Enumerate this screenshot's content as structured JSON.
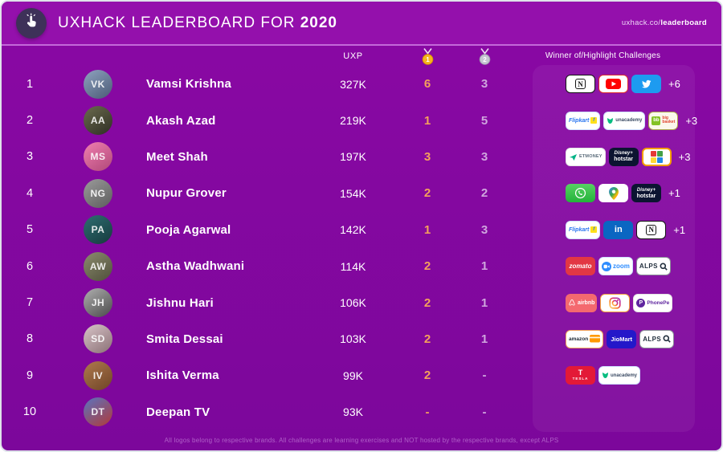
{
  "header": {
    "title_prefix": "UXHACK LEADERBOARD FOR ",
    "title_year": "2020",
    "url_prefix": "uxhack.co/",
    "url_bold": "leaderboard"
  },
  "columns": {
    "uxp_label": "UXP",
    "gold_medal_number": "1",
    "silver_medal_number": "2",
    "challenges_label": "Winner of/Highlight Challenges"
  },
  "colors": {
    "gold_count": "#F4A05C",
    "silver_count": "#CFA6DE",
    "gold_medal": "#F6B51E",
    "silver_medal": "#C6C6D2",
    "header_bg": "#9410AC",
    "body_bg": "#8A08A4",
    "twitter_blue": "#1D9BF0",
    "linkedin_blue": "#0A66C2",
    "whatsapp_green": "#23B33A",
    "zomato_red": "#E23744",
    "tesla_red": "#E31937"
  },
  "brands": {
    "notion": {
      "label": "N"
    },
    "youtube": {
      "label": ""
    },
    "twitter": {
      "label": ""
    },
    "flipkart": {
      "label": "Flipkart"
    },
    "unacademy": {
      "label": "unacademy"
    },
    "bigbasket": {
      "label_icon": "bb",
      "label": "big basket"
    },
    "etmoney": {
      "label": "ETMONEY"
    },
    "hotstar": {
      "label_top": "Disney+",
      "label": "hotstar"
    },
    "ludoking": {
      "label": ""
    },
    "whatsapp": {
      "label": ""
    },
    "googlemaps": {
      "label": ""
    },
    "linkedin": {
      "label": "in"
    },
    "zomato": {
      "label": "zomato"
    },
    "zoom": {
      "label": "zoom"
    },
    "alps": {
      "label": "ALPS"
    },
    "airbnb": {
      "label": "airbnb"
    },
    "instagram": {
      "label": ""
    },
    "phonepe": {
      "label": "PhonePe",
      "label_icon": "P"
    },
    "amazonpay": {
      "label": "amazon"
    },
    "jiomart": {
      "label": "JioMart"
    },
    "tesla": {
      "label": "TESLA",
      "label_icon": "T"
    }
  },
  "rows": [
    {
      "rank": "1",
      "name": "Vamsi Krishna",
      "uxp": "327K",
      "gold": "6",
      "silver": "3",
      "brands": [
        "notion",
        "youtube",
        "twitter"
      ],
      "extra": "+6"
    },
    {
      "rank": "2",
      "name": "Akash Azad",
      "uxp": "219K",
      "gold": "1",
      "silver": "5",
      "brands": [
        "flipkart",
        "unacademy",
        "bigbasket"
      ],
      "extra": "+3"
    },
    {
      "rank": "3",
      "name": "Meet Shah",
      "uxp": "197K",
      "gold": "3",
      "silver": "3",
      "brands": [
        "etmoney",
        "hotstar",
        "ludoking"
      ],
      "extra": "+3"
    },
    {
      "rank": "4",
      "name": "Nupur Grover",
      "uxp": "154K",
      "gold": "2",
      "silver": "2",
      "brands": [
        "whatsapp",
        "googlemaps",
        "hotstar"
      ],
      "extra": "+1"
    },
    {
      "rank": "5",
      "name": "Pooja Agarwal",
      "uxp": "142K",
      "gold": "1",
      "silver": "3",
      "brands": [
        "flipkart",
        "linkedin",
        "notion"
      ],
      "extra": "+1"
    },
    {
      "rank": "6",
      "name": "Astha Wadhwani",
      "uxp": "114K",
      "gold": "2",
      "silver": "1",
      "brands": [
        "zomato",
        "zoom",
        "alps"
      ],
      "extra": ""
    },
    {
      "rank": "7",
      "name": "Jishnu Hari",
      "uxp": "106K",
      "gold": "2",
      "silver": "1",
      "brands": [
        "airbnb",
        "instagram",
        "phonepe"
      ],
      "extra": ""
    },
    {
      "rank": "8",
      "name": "Smita Dessai",
      "uxp": "103K",
      "gold": "2",
      "silver": "1",
      "brands": [
        "amazonpay",
        "jiomart",
        "alps"
      ],
      "extra": ""
    },
    {
      "rank": "9",
      "name": "Ishita Verma",
      "uxp": "99K",
      "gold": "2",
      "silver": "-",
      "brands": [
        "tesla",
        "unacademy"
      ],
      "extra": ""
    },
    {
      "rank": "10",
      "name": "Deepan TV",
      "uxp": "93K",
      "gold": "-",
      "silver": "-",
      "brands": [],
      "extra": ""
    }
  ],
  "footer": {
    "disclaimer": "All logos belong to respective brands. All challenges are learning exercises and NOT hosted by the respective brands, except ALPS"
  }
}
